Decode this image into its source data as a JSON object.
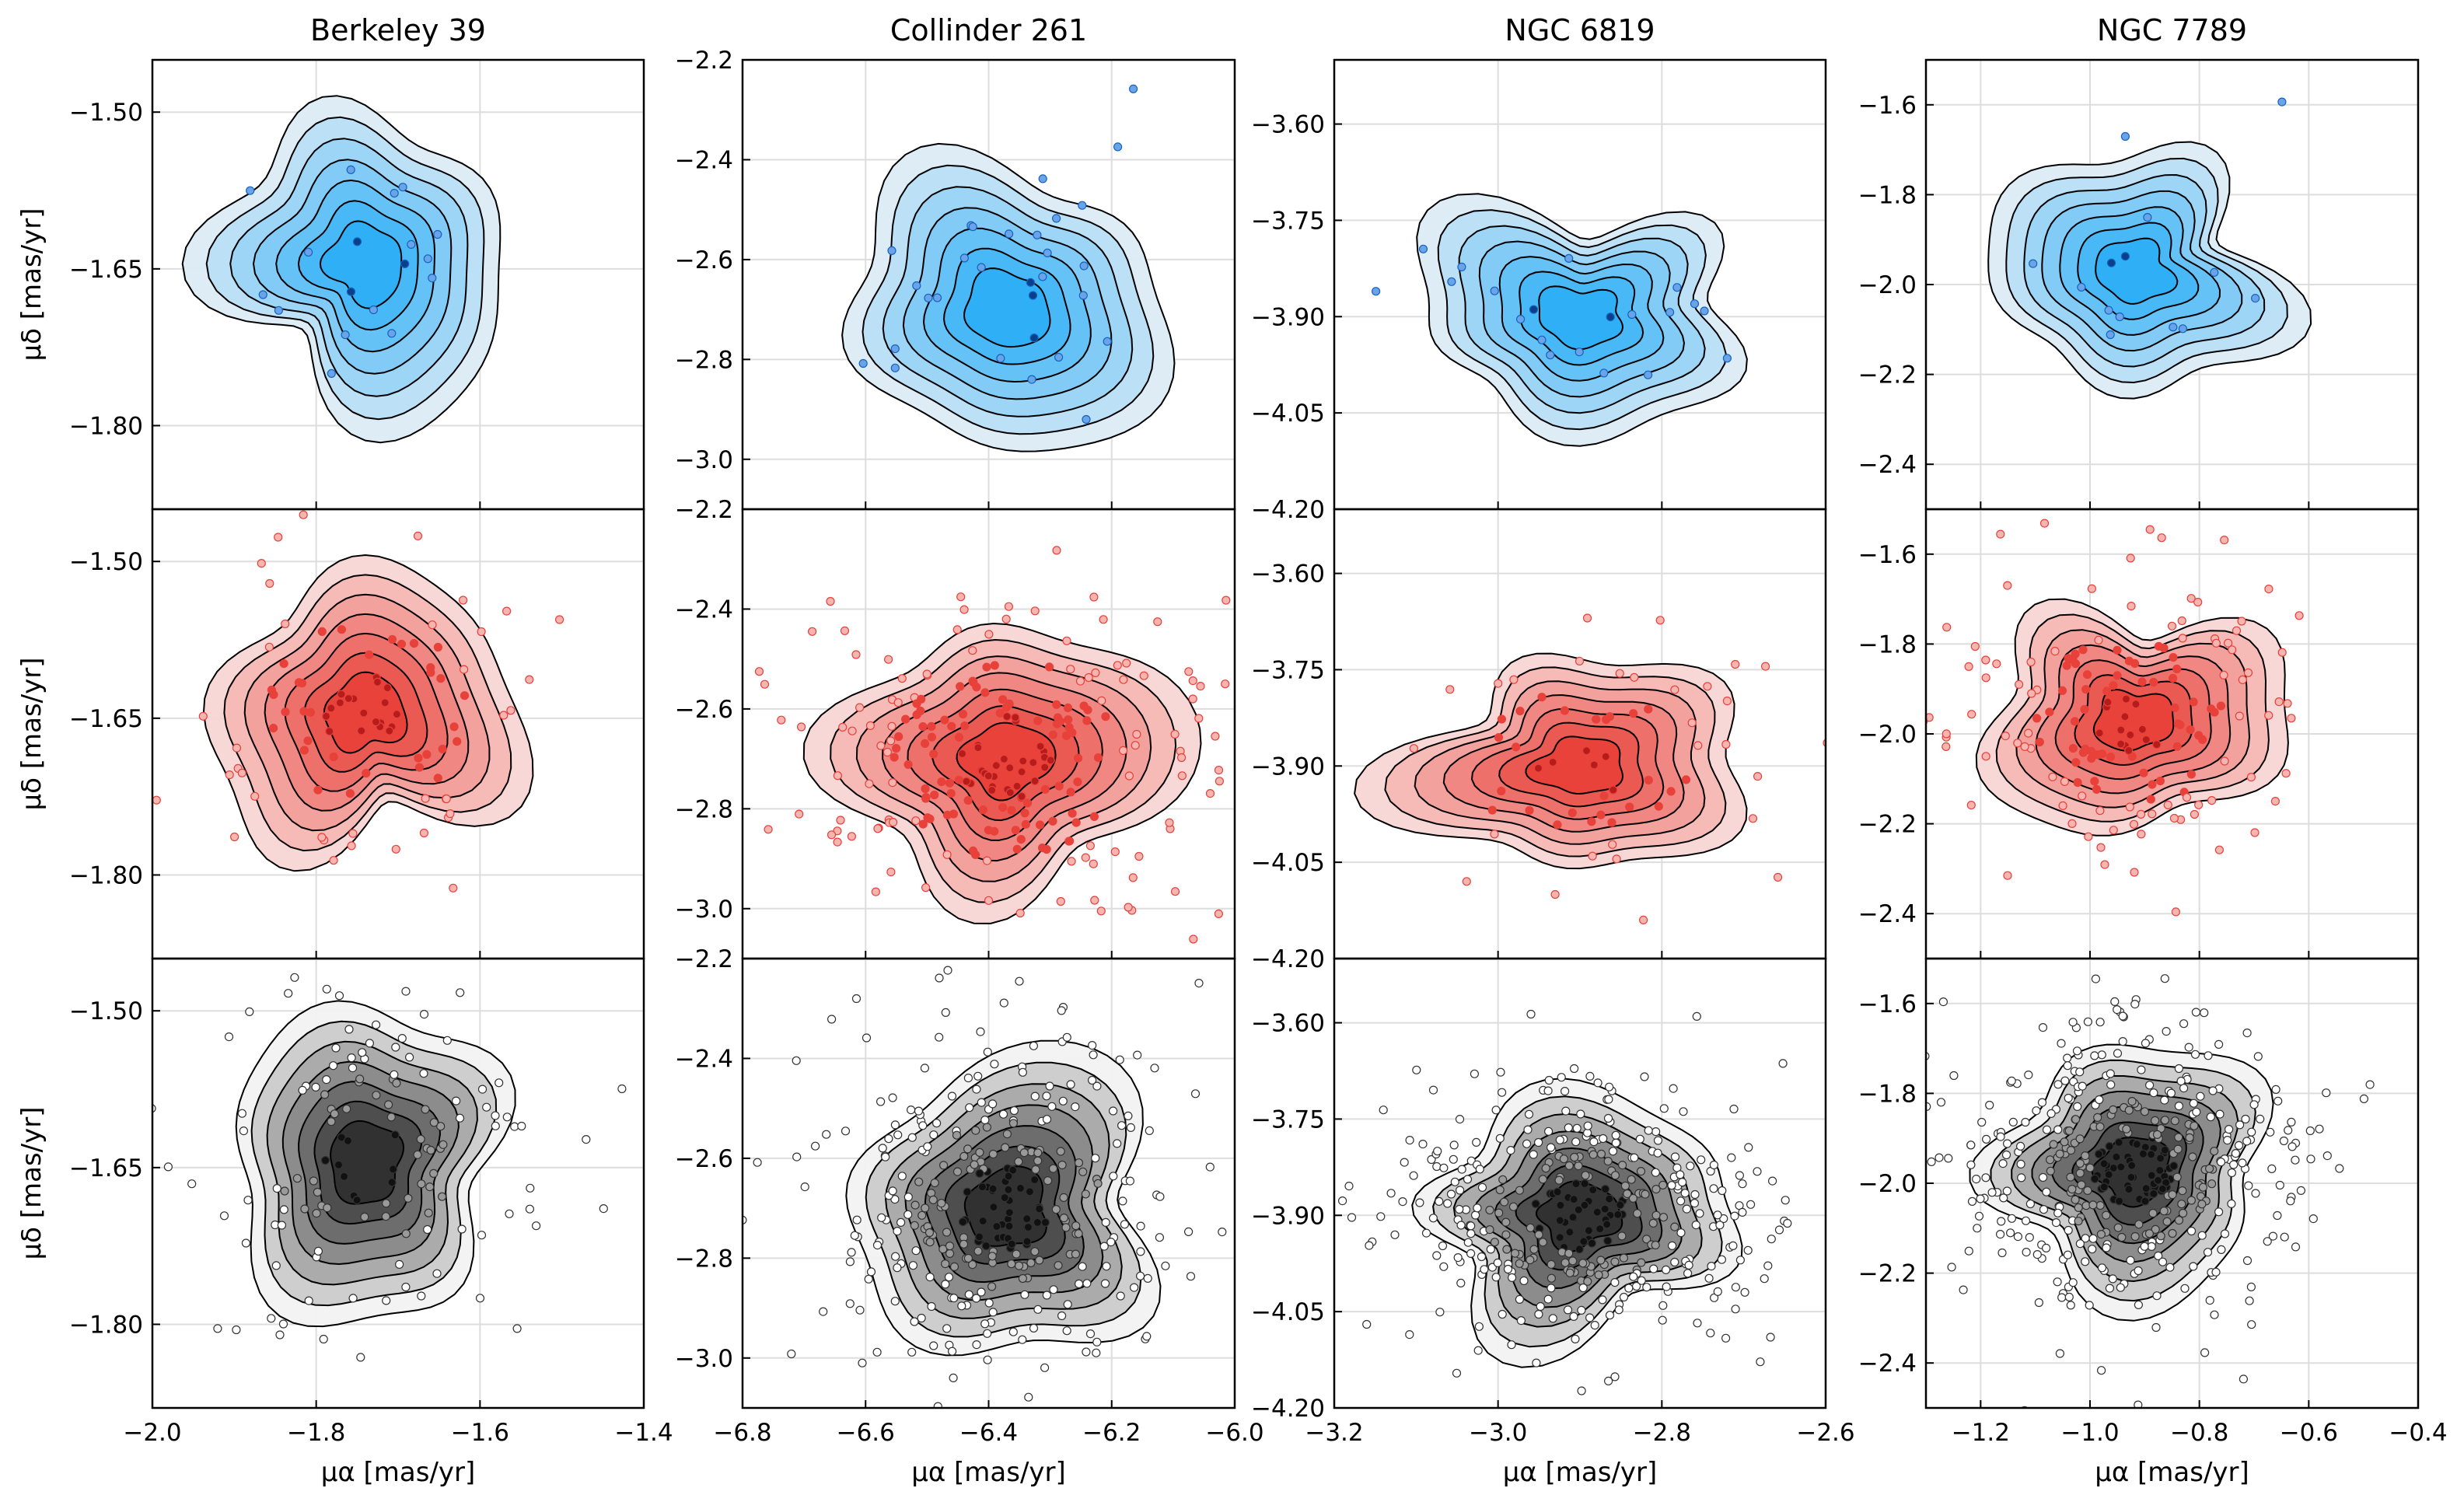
{
  "page": {
    "background": "#ffffff"
  },
  "colors": {
    "blue": {
      "fill": "#2eaef5",
      "light": "#dcebf6",
      "point": "#1565c0",
      "dark": "#0b3f8a"
    },
    "red": {
      "fill": "#e8413a",
      "light": "#f8d6d4",
      "point": "#e8413a",
      "dark": "#b71c1c"
    },
    "gray": {
      "fill": "#2f2f2f",
      "light": "#f2f2f2",
      "point": "#555555",
      "dark": "#111111"
    }
  },
  "labels": {
    "ylabel": "μδ [mas/yr]",
    "xlabel": "μα [mas/yr]"
  },
  "chart_data": [
    {
      "type": "scatter",
      "title": "Berkeley 39",
      "xlim": [
        -2.0,
        -1.4
      ],
      "xticks": [
        "−2.0",
        "−1.8",
        "−1.6",
        "−1.4"
      ],
      "xtick_values": [
        -2.0,
        -1.8,
        -1.6,
        -1.4
      ],
      "ylim": [
        -1.88,
        -1.45
      ],
      "yticks": [
        "−1.50",
        "−1.65",
        "−1.80"
      ],
      "ytick_values": [
        -1.5,
        -1.65,
        -1.8
      ],
      "center": [
        -1.74,
        -1.645
      ],
      "spread": [
        0.08,
        0.065
      ],
      "counts": [
        18,
        90,
        130
      ],
      "grid": true
    },
    {
      "type": "scatter",
      "title": "Collinder 261",
      "xlim": [
        -6.8,
        -6.0
      ],
      "xticks": [
        "−6.8",
        "−6.6",
        "−6.4",
        "−6.2",
        "−6.0"
      ],
      "xtick_values": [
        -6.8,
        -6.6,
        -6.4,
        -6.2,
        -6.0
      ],
      "ylim": [
        -3.1,
        -2.2
      ],
      "yticks": [
        "−2.2",
        "−2.4",
        "−2.6",
        "−2.8",
        "−3.0"
      ],
      "ytick_values": [
        -2.2,
        -2.4,
        -2.6,
        -2.8,
        -3.0
      ],
      "center": [
        -6.37,
        -2.7
      ],
      "spread": [
        0.12,
        0.13
      ],
      "counts": [
        30,
        230,
        330
      ],
      "grid": true
    },
    {
      "type": "scatter",
      "title": "NGC 6819",
      "xlim": [
        -3.2,
        -2.6
      ],
      "xticks": [
        "−3.2",
        "−3.0",
        "−2.8",
        "−2.6"
      ],
      "xtick_values": [
        -3.2,
        -3.0,
        -2.8,
        -2.6
      ],
      "ylim": [
        -4.2,
        -3.5
      ],
      "yticks": [
        "−3.60",
        "−3.75",
        "−3.90",
        "−4.05",
        "−4.20"
      ],
      "ytick_values": [
        -3.6,
        -3.75,
        -3.9,
        -4.05,
        -4.2
      ],
      "center": [
        -2.9,
        -3.9
      ],
      "spread": [
        0.09,
        0.08
      ],
      "counts": [
        20,
        60,
        380
      ],
      "grid": true
    },
    {
      "type": "scatter",
      "title": "NGC 7789",
      "xlim": [
        -1.3,
        -0.4
      ],
      "xticks": [
        "−1.2",
        "−1.0",
        "−0.8",
        "−0.6",
        "−0.4"
      ],
      "xtick_values": [
        -1.2,
        -1.0,
        -0.8,
        -0.6,
        -0.4
      ],
      "ylim": [
        -2.5,
        -1.5
      ],
      "yticks": [
        "−1.6",
        "−1.8",
        "−2.0",
        "−2.2",
        "−2.4"
      ],
      "ytick_values": [
        -1.6,
        -1.8,
        -2.0,
        -2.2,
        -2.4
      ],
      "center": [
        -0.92,
        -1.97
      ],
      "spread": [
        0.12,
        0.12
      ],
      "counts": [
        14,
        160,
        420
      ],
      "grid": true
    }
  ]
}
